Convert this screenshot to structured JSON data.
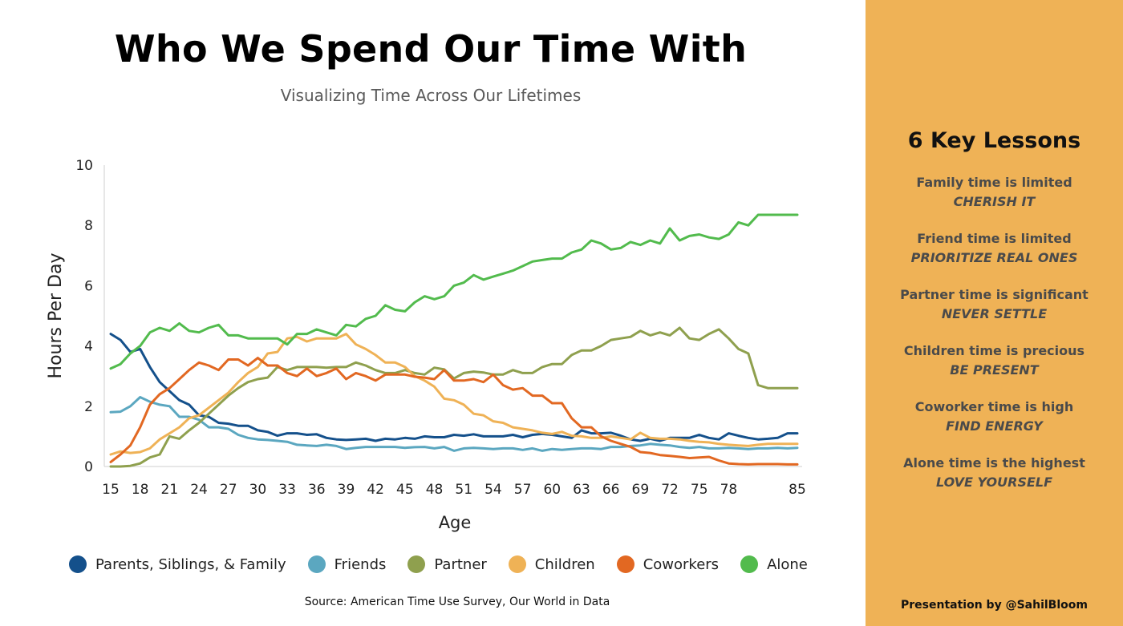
{
  "header": {
    "title": "Who We Spend Our Time With",
    "subtitle": "Visualizing Time Across Our Lifetimes"
  },
  "source": "Source: American Time Use Survey, Our World in Data",
  "sidebar": {
    "title": "6 Key Lessons",
    "lessons": [
      {
        "head": "Family time is limited",
        "tag": "CHERISH IT"
      },
      {
        "head": "Friend time is limited",
        "tag": "PRIORITIZE REAL ONES"
      },
      {
        "head": "Partner time is significant",
        "tag": "NEVER SETTLE"
      },
      {
        "head": "Children time is precious",
        "tag": "BE PRESENT"
      },
      {
        "head": "Coworker time is high",
        "tag": "FIND ENERGY"
      },
      {
        "head": "Alone time is the highest",
        "tag": "LOVE YOURSELF"
      }
    ],
    "credit": "Presentation by @SahilBloom"
  },
  "colors": {
    "sidebar_background": "#efb256",
    "family": "#14508b",
    "friends": "#5ba7c0",
    "partner": "#8fa04e",
    "children": "#efb256",
    "coworkers": "#e26822",
    "alone": "#52bb4d"
  },
  "chart_data": {
    "type": "line",
    "xlabel": "Age",
    "ylabel": "Hours Per Day",
    "xlim": [
      15,
      85
    ],
    "ylim": [
      0,
      10
    ],
    "x_ticks": [
      15,
      18,
      21,
      24,
      27,
      30,
      33,
      36,
      39,
      42,
      45,
      48,
      51,
      54,
      57,
      60,
      63,
      66,
      69,
      72,
      75,
      78,
      85
    ],
    "y_ticks": [
      0,
      2,
      4,
      6,
      8,
      10
    ],
    "legend_position": "bottom",
    "grid": false,
    "x": [
      15,
      16,
      17,
      18,
      19,
      20,
      21,
      22,
      23,
      24,
      25,
      26,
      27,
      28,
      29,
      30,
      31,
      32,
      33,
      34,
      35,
      36,
      37,
      38,
      39,
      40,
      41,
      42,
      43,
      44,
      45,
      46,
      47,
      48,
      49,
      50,
      51,
      52,
      53,
      54,
      55,
      56,
      57,
      58,
      59,
      60,
      61,
      62,
      63,
      64,
      65,
      66,
      67,
      68,
      69,
      70,
      71,
      72,
      73,
      74,
      75,
      76,
      77,
      78,
      79,
      80,
      81,
      82,
      83,
      84,
      85
    ],
    "series": [
      {
        "name": "Parents, Siblings, & Family",
        "color": "#14508b",
        "values": [
          4.4,
          4.2,
          3.8,
          3.9,
          3.3,
          2.8,
          2.5,
          2.2,
          2.05,
          1.7,
          1.65,
          1.45,
          1.42,
          1.35,
          1.35,
          1.2,
          1.15,
          1.02,
          1.1,
          1.1,
          1.05,
          1.07,
          0.95,
          0.9,
          0.88,
          0.9,
          0.92,
          0.85,
          0.92,
          0.9,
          0.95,
          0.92,
          1.0,
          0.97,
          0.97,
          1.05,
          1.02,
          1.07,
          1.0,
          1.0,
          1.0,
          1.05,
          0.97,
          1.05,
          1.08,
          1.05,
          1.0,
          0.95,
          1.2,
          1.1,
          1.1,
          1.12,
          1.02,
          0.9,
          0.85,
          0.92,
          0.85,
          0.95,
          0.95,
          0.95,
          1.05,
          0.95,
          0.9,
          1.1,
          1.02,
          0.95,
          0.9,
          0.92,
          0.95,
          1.1,
          1.1
        ]
      },
      {
        "name": "Friends",
        "color": "#5ba7c0",
        "values": [
          1.8,
          1.82,
          2.0,
          2.3,
          2.15,
          2.05,
          2.0,
          1.65,
          1.65,
          1.55,
          1.3,
          1.3,
          1.25,
          1.05,
          0.95,
          0.9,
          0.88,
          0.85,
          0.82,
          0.72,
          0.7,
          0.68,
          0.72,
          0.68,
          0.58,
          0.62,
          0.65,
          0.65,
          0.65,
          0.65,
          0.62,
          0.64,
          0.65,
          0.6,
          0.65,
          0.52,
          0.6,
          0.62,
          0.6,
          0.58,
          0.6,
          0.6,
          0.55,
          0.6,
          0.52,
          0.58,
          0.55,
          0.58,
          0.6,
          0.6,
          0.58,
          0.65,
          0.65,
          0.68,
          0.7,
          0.75,
          0.72,
          0.7,
          0.65,
          0.62,
          0.65,
          0.6,
          0.6,
          0.62,
          0.6,
          0.58,
          0.6,
          0.6,
          0.62,
          0.6,
          0.62
        ]
      },
      {
        "name": "Partner",
        "color": "#8fa04e",
        "values": [
          0,
          0,
          0.02,
          0.1,
          0.3,
          0.4,
          1.0,
          0.92,
          1.2,
          1.45,
          1.75,
          2.05,
          2.35,
          2.6,
          2.8,
          2.9,
          2.95,
          3.3,
          3.2,
          3.3,
          3.3,
          3.3,
          3.28,
          3.3,
          3.3,
          3.45,
          3.35,
          3.2,
          3.1,
          3.1,
          3.2,
          3.1,
          3.05,
          3.28,
          3.22,
          2.92,
          3.1,
          3.15,
          3.12,
          3.05,
          3.05,
          3.2,
          3.1,
          3.1,
          3.3,
          3.4,
          3.4,
          3.7,
          3.85,
          3.85,
          4.0,
          4.2,
          4.25,
          4.3,
          4.5,
          4.35,
          4.45,
          4.35,
          4.6,
          4.25,
          4.2,
          4.4,
          4.55,
          4.25,
          3.9,
          3.75,
          2.7,
          2.6,
          2.6,
          2.6,
          2.6
        ]
      },
      {
        "name": "Children",
        "color": "#efb256",
        "values": [
          0.4,
          0.5,
          0.45,
          0.48,
          0.6,
          0.9,
          1.1,
          1.3,
          1.6,
          1.7,
          1.95,
          2.2,
          2.45,
          2.8,
          3.1,
          3.3,
          3.75,
          3.8,
          4.25,
          4.3,
          4.15,
          4.25,
          4.25,
          4.25,
          4.4,
          4.05,
          3.9,
          3.7,
          3.45,
          3.45,
          3.3,
          3.0,
          2.85,
          2.65,
          2.25,
          2.2,
          2.05,
          1.75,
          1.7,
          1.5,
          1.45,
          1.3,
          1.25,
          1.2,
          1.12,
          1.08,
          1.15,
          1.02,
          1.0,
          0.95,
          0.95,
          1.0,
          0.95,
          0.9,
          1.12,
          0.95,
          0.92,
          0.92,
          0.9,
          0.85,
          0.82,
          0.8,
          0.75,
          0.72,
          0.7,
          0.68,
          0.72,
          0.75,
          0.75,
          0.75,
          0.75
        ]
      },
      {
        "name": "Coworkers",
        "color": "#e26822",
        "values": [
          0.15,
          0.4,
          0.7,
          1.3,
          2.05,
          2.4,
          2.6,
          2.9,
          3.2,
          3.45,
          3.35,
          3.2,
          3.55,
          3.55,
          3.35,
          3.6,
          3.35,
          3.35,
          3.1,
          3.0,
          3.25,
          3.0,
          3.1,
          3.25,
          2.9,
          3.1,
          3.0,
          2.85,
          3.05,
          3.05,
          3.05,
          2.98,
          2.95,
          2.9,
          3.2,
          2.85,
          2.85,
          2.9,
          2.8,
          3.05,
          2.7,
          2.55,
          2.6,
          2.35,
          2.35,
          2.1,
          2.1,
          1.6,
          1.3,
          1.3,
          1.0,
          0.85,
          0.75,
          0.65,
          0.48,
          0.45,
          0.38,
          0.35,
          0.32,
          0.28,
          0.3,
          0.32,
          0.2,
          0.1,
          0.08,
          0.07,
          0.08,
          0.08,
          0.08,
          0.07,
          0.07
        ]
      },
      {
        "name": "Alone",
        "color": "#52bb4d",
        "values": [
          3.25,
          3.4,
          3.75,
          4.0,
          4.45,
          4.6,
          4.5,
          4.75,
          4.5,
          4.45,
          4.6,
          4.7,
          4.35,
          4.35,
          4.25,
          4.25,
          4.25,
          4.25,
          4.05,
          4.4,
          4.4,
          4.55,
          4.45,
          4.35,
          4.7,
          4.65,
          4.9,
          5.0,
          5.35,
          5.2,
          5.15,
          5.45,
          5.65,
          5.55,
          5.65,
          6.0,
          6.1,
          6.35,
          6.2,
          6.3,
          6.4,
          6.5,
          6.65,
          6.8,
          6.85,
          6.9,
          6.9,
          7.1,
          7.2,
          7.5,
          7.4,
          7.2,
          7.25,
          7.45,
          7.35,
          7.5,
          7.4,
          7.9,
          7.5,
          7.65,
          7.7,
          7.6,
          7.55,
          7.7,
          8.1,
          8.0,
          8.35,
          8.35,
          8.35,
          8.35,
          8.35
        ]
      }
    ]
  }
}
